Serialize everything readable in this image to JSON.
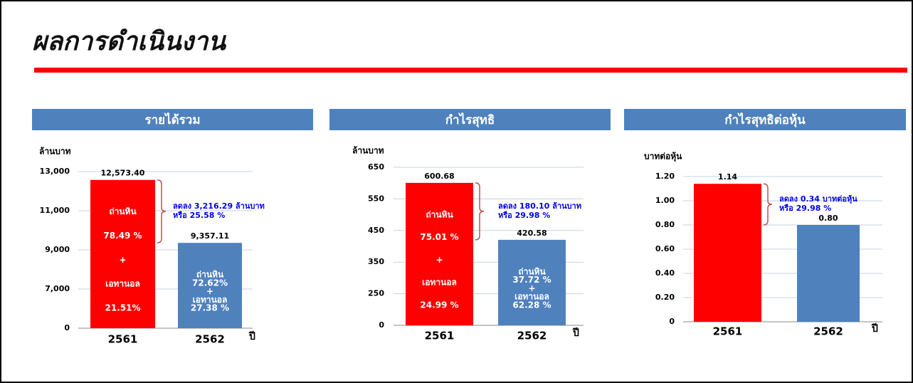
{
  "title": "ผลการดำเนินงาน",
  "chart_data": [
    {
      "type": "bar",
      "title": "รายได้รวม",
      "y_label": "ล้านบาท",
      "x_label": "ปี",
      "categories": [
        "2561",
        "2562"
      ],
      "values": [
        12573.4,
        9357.11
      ],
      "value_labels": [
        "12,573.40",
        "9,357.11"
      ],
      "colors": [
        "#ff0000",
        "#4f81bd"
      ],
      "ylim": [
        0,
        13000
      ],
      "ybreak": [
        0,
        5000
      ],
      "yticks": [
        0,
        {
          "value": 7000,
          "label": "7,000"
        },
        {
          "value": 9000,
          "label": "9,000"
        },
        {
          "value": 11000,
          "label": "11,000"
        },
        {
          "value": 13000,
          "label": "13,000"
        }
      ],
      "grid": true,
      "bar_notes": [
        [
          "ถ่านหิน",
          "78.49 %",
          "+",
          "เอทานอล",
          "21.51%"
        ],
        [
          "ถ่านหิน",
          "72.62%",
          "+",
          "เอทานอล",
          "27.38 %"
        ]
      ],
      "change_note": [
        "ลดลง 3,216.29 ล้านบาท",
        "หรือ 25.58 %"
      ]
    },
    {
      "type": "bar",
      "title": "กำไรสุทธิ",
      "y_label": "ล้านบาท",
      "x_label": "ปี",
      "categories": [
        "2561",
        "2562"
      ],
      "values": [
        600.68,
        420.58
      ],
      "colors": [
        "#ff0000",
        "#4f81bd"
      ],
      "ylim": [
        0,
        650
      ],
      "ybreak": [
        0,
        150
      ],
      "yticks": [
        0,
        250,
        350,
        450,
        550,
        650
      ],
      "grid": true,
      "bar_notes": [
        [
          "ถ่านหิน",
          "75.01 %",
          "+",
          "เอทานอล",
          "24.99 %"
        ],
        [
          "ถ่านหิน",
          "37.72 %",
          "+",
          "เอทานอล",
          "62.28 %"
        ]
      ],
      "change_note": [
        "ลดลง 180.10 ล้านบาท",
        "หรือ  29.98 %"
      ]
    },
    {
      "type": "bar",
      "title": "กำไรสุทธิต่อหุ้น",
      "y_label": "บาทต่อหุ้น",
      "x_label": "ปี",
      "categories": [
        "2561",
        "2562"
      ],
      "values": [
        1.14,
        0.8
      ],
      "value_labels": [
        "1.14",
        "0.80"
      ],
      "colors": [
        "#ff0000",
        "#4f81bd"
      ],
      "ylim": [
        0,
        1.2
      ],
      "yticks": [
        0,
        {
          "value": 0.2,
          "label": "0.20"
        },
        {
          "value": 0.4,
          "label": "0.40"
        },
        {
          "value": 0.6,
          "label": "0.60"
        },
        {
          "value": 0.8,
          "label": "0.80"
        },
        {
          "value": 1.0,
          "label": "1.00"
        },
        {
          "value": 1.2,
          "label": "1.20"
        }
      ],
      "grid": true,
      "change_note": [
        "ลดลง 0.34 บาทต่อหุ้น",
        "หรือ  29.98 %"
      ]
    }
  ]
}
